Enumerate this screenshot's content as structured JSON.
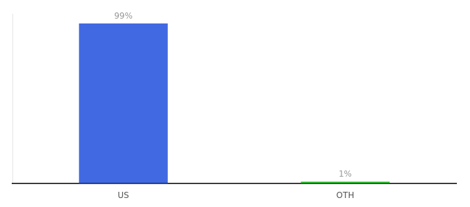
{
  "chart_data": {
    "type": "bar",
    "categories": [
      "US",
      "OTH"
    ],
    "values": [
      99,
      1
    ],
    "value_labels": [
      "99%",
      "1%"
    ],
    "colors": [
      "#4169e1",
      "#32cd32"
    ],
    "ylim": [
      0,
      105
    ],
    "data_labels": true,
    "tick_labels": "x",
    "grid": false,
    "legend": false
  }
}
